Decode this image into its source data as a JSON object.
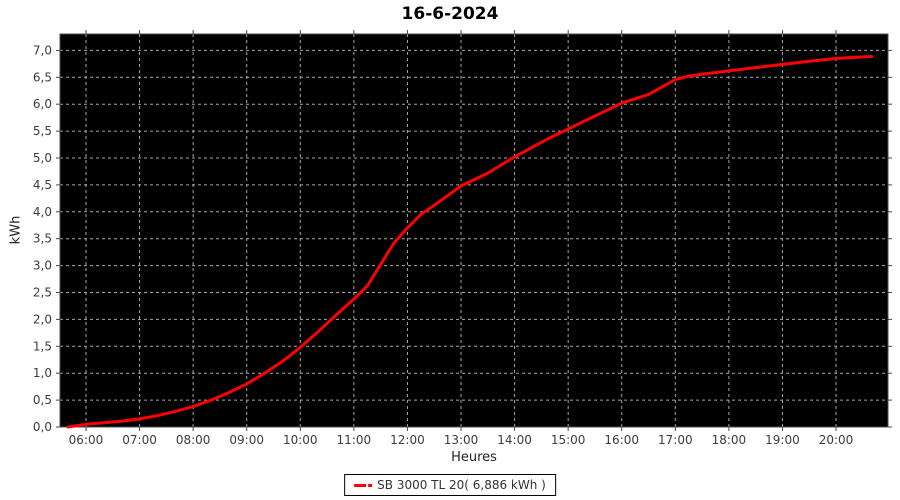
{
  "title": "16-6-2024",
  "y_axis": {
    "title": "kWh",
    "tick_labels": [
      "0,0",
      "0,5",
      "1,0",
      "1,5",
      "2,0",
      "2,5",
      "3,0",
      "3,5",
      "4,0",
      "4,5",
      "5,0",
      "5,5",
      "6,0",
      "6,5",
      "7,0"
    ],
    "tick_values": [
      0,
      0.5,
      1,
      1.5,
      2,
      2.5,
      3,
      3.5,
      4,
      4.5,
      5,
      5.5,
      6,
      6.5,
      7
    ]
  },
  "x_axis": {
    "title": "Heures",
    "tick_labels": [
      "06:00",
      "07:00",
      "08:00",
      "09:00",
      "10:00",
      "11:00",
      "12:00",
      "13:00",
      "14:00",
      "15:00",
      "16:00",
      "17:00",
      "18:00",
      "19:00",
      "20:00"
    ],
    "tick_hours": [
      6,
      7,
      8,
      9,
      10,
      11,
      12,
      13,
      14,
      15,
      16,
      17,
      18,
      19,
      20
    ]
  },
  "legend": {
    "label": "SB 3000 TL 20( 6,886 kWh )",
    "marker_color": "#ff0000"
  },
  "colors": {
    "page_background": "#ffffff",
    "plot_background": "#000000",
    "plot_border": "#4d4d4d",
    "gridline": "#a8a8a8",
    "tick": "#444444",
    "series_line": "#ff0000",
    "tick_label": "#3c3c3c",
    "title": "#000000"
  },
  "chart_data": {
    "type": "line",
    "title": "16-6-2024",
    "xlabel": "Heures",
    "ylabel": "kWh",
    "xlim_hours": [
      5.515,
      20.97
    ],
    "ylim": [
      0,
      7.305
    ],
    "y_gridline_step": 0.5,
    "x_gridline_step_hours": 1,
    "grid": "dashed",
    "legend_position": "bottom-center",
    "series": [
      {
        "name": "SB 3000 TL 20",
        "total_label": "6,886 kWh",
        "color": "#ff0000",
        "points_time_kwh": [
          [
            "05:40",
            0.0
          ],
          [
            "06:00",
            0.05
          ],
          [
            "06:20",
            0.08
          ],
          [
            "06:40",
            0.11
          ],
          [
            "07:00",
            0.15
          ],
          [
            "07:20",
            0.21
          ],
          [
            "07:40",
            0.29
          ],
          [
            "08:00",
            0.38
          ],
          [
            "08:20",
            0.5
          ],
          [
            "08:40",
            0.64
          ],
          [
            "09:00",
            0.8
          ],
          [
            "09:20",
            1.0
          ],
          [
            "09:40",
            1.22
          ],
          [
            "10:00",
            1.48
          ],
          [
            "10:20",
            1.77
          ],
          [
            "10:40",
            2.08
          ],
          [
            "11:00",
            2.38
          ],
          [
            "11:15",
            2.62
          ],
          [
            "11:30",
            3.02
          ],
          [
            "11:45",
            3.42
          ],
          [
            "12:00",
            3.7
          ],
          [
            "12:15",
            3.95
          ],
          [
            "12:30",
            4.12
          ],
          [
            "12:45",
            4.3
          ],
          [
            "13:00",
            4.48
          ],
          [
            "13:15",
            4.6
          ],
          [
            "13:30",
            4.72
          ],
          [
            "13:45",
            4.87
          ],
          [
            "14:00",
            5.02
          ],
          [
            "14:20",
            5.2
          ],
          [
            "14:40",
            5.38
          ],
          [
            "15:00",
            5.54
          ],
          [
            "15:20",
            5.7
          ],
          [
            "15:40",
            5.86
          ],
          [
            "16:00",
            6.02
          ],
          [
            "16:15",
            6.1
          ],
          [
            "16:30",
            6.18
          ],
          [
            "16:45",
            6.32
          ],
          [
            "17:00",
            6.46
          ],
          [
            "17:15",
            6.52
          ],
          [
            "17:30",
            6.56
          ],
          [
            "18:00",
            6.62
          ],
          [
            "18:30",
            6.68
          ],
          [
            "19:00",
            6.74
          ],
          [
            "19:30",
            6.8
          ],
          [
            "20:00",
            6.85
          ],
          [
            "20:20",
            6.87
          ],
          [
            "20:40",
            6.886
          ]
        ]
      }
    ]
  }
}
